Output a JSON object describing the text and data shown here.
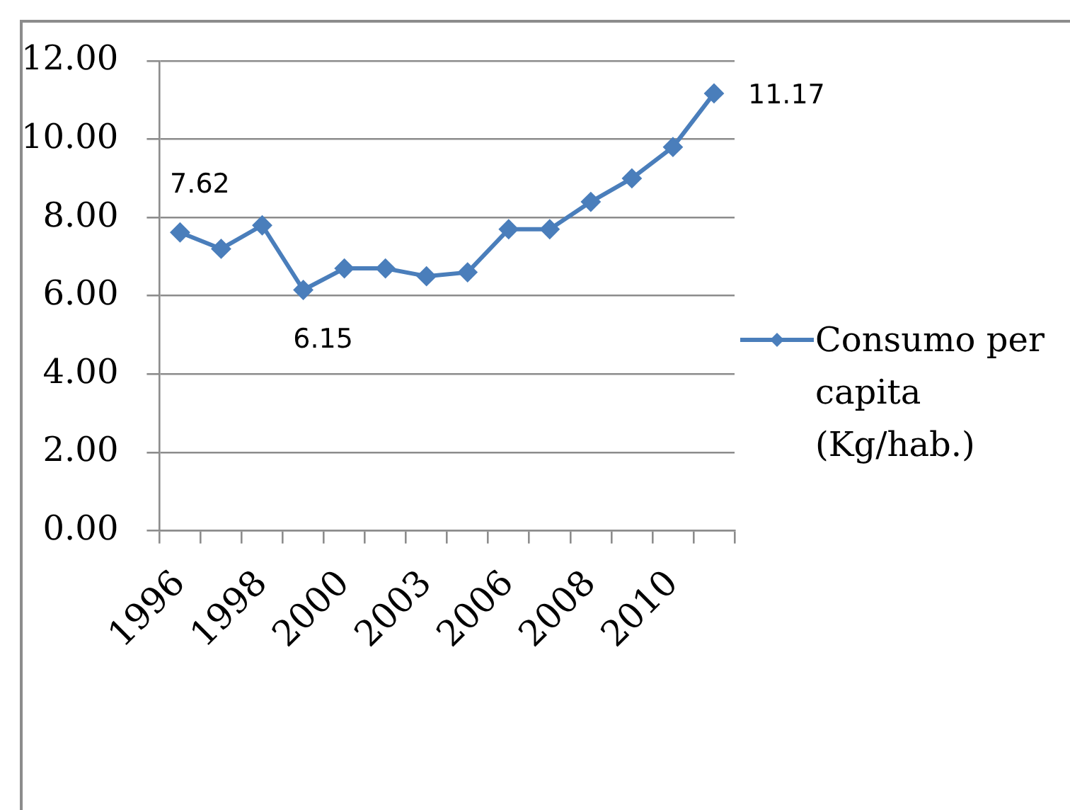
{
  "chart_data": {
    "type": "line",
    "categories": [
      "1996",
      null,
      "1998",
      null,
      "2000",
      null,
      "2003",
      null,
      "2006",
      null,
      "2008",
      null,
      "2010",
      null
    ],
    "series": [
      {
        "name": "Consumo per capita (Kg/hab.)",
        "color": "#4a7ebb",
        "values": [
          7.62,
          7.2,
          7.8,
          6.15,
          6.7,
          6.7,
          6.5,
          6.6,
          7.7,
          7.7,
          8.4,
          9.0,
          9.8,
          11.17
        ],
        "value_labels": [
          "7.62",
          null,
          null,
          "6.15",
          null,
          null,
          null,
          null,
          null,
          null,
          null,
          null,
          null,
          "11.17"
        ]
      }
    ],
    "ylim": [
      0,
      12
    ],
    "yticks": [
      {
        "value": 0,
        "label": "0.00"
      },
      {
        "value": 2,
        "label": "2.00"
      },
      {
        "value": 4,
        "label": "4.00"
      },
      {
        "value": 6,
        "label": "6.00"
      },
      {
        "value": 8,
        "label": "8.00"
      },
      {
        "value": 10,
        "label": "10.00"
      },
      {
        "value": 12,
        "label": "12.00"
      }
    ],
    "grid": "y",
    "legend": "right",
    "marker": "diamond",
    "line_style": "solid"
  }
}
